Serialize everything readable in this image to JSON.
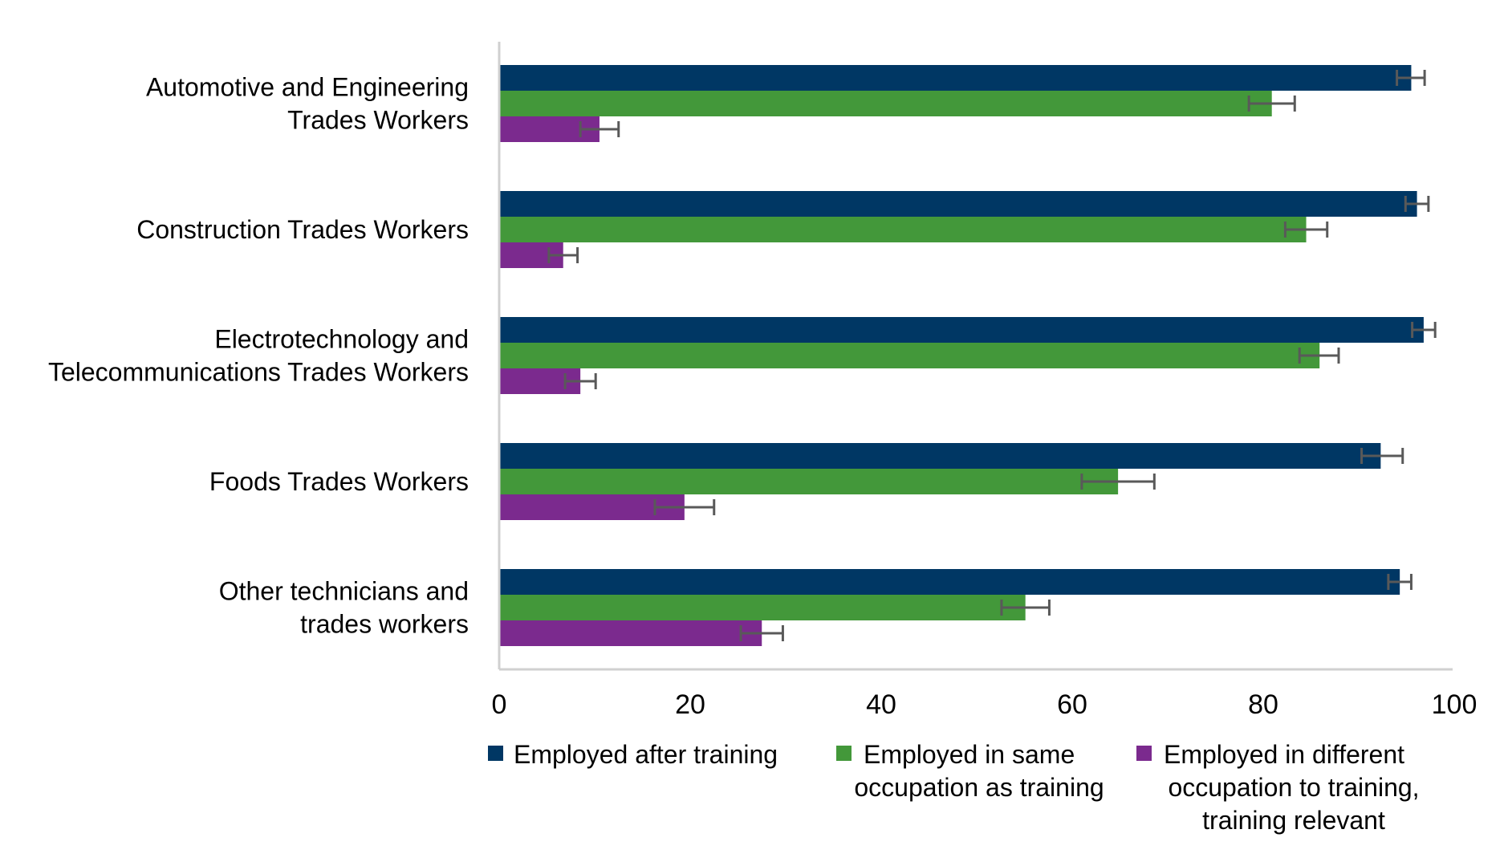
{
  "chart_data": {
    "type": "bar",
    "orientation": "horizontal",
    "title": "",
    "xlabel": "",
    "ylabel": "",
    "xlim": [
      0,
      100
    ],
    "x_ticks": [
      0,
      20,
      40,
      60,
      80,
      100
    ],
    "grid": false,
    "legend_position": "bottom",
    "error_bars": true,
    "categories": [
      [
        "Automotive and Engineering",
        "Trades Workers"
      ],
      [
        "Construction Trades Workers"
      ],
      [
        "Electrotechnology and",
        "Telecommunications Trades Workers"
      ],
      [
        "Foods Trades Workers"
      ],
      [
        "Other technicians and",
        "trades workers"
      ]
    ],
    "series": [
      {
        "name": "Employed after training",
        "legend_lines": [
          "Employed after training"
        ],
        "color": "#003764",
        "values": [
          95.5,
          96.1,
          96.8,
          92.3,
          94.3
        ],
        "err_low": [
          94.0,
          94.9,
          95.6,
          90.3,
          93.1
        ],
        "err_high": [
          96.9,
          97.3,
          98.0,
          94.6,
          95.5
        ]
      },
      {
        "name": "Employed in same occupation as training",
        "legend_lines": [
          "Employed in same",
          "occupation as training"
        ],
        "color": "#43983A",
        "values": [
          80.9,
          84.5,
          85.9,
          64.8,
          55.1
        ],
        "err_low": [
          78.5,
          82.3,
          83.8,
          61.0,
          52.6
        ],
        "err_high": [
          83.3,
          86.7,
          87.9,
          68.6,
          57.6
        ]
      },
      {
        "name": "Employed in different occupation to training, training relevant",
        "legend_lines": [
          "Employed in different",
          "occupation to training,",
          "training relevant"
        ],
        "color": "#7B2A8E",
        "values": [
          10.5,
          6.7,
          8.5,
          19.4,
          27.5
        ],
        "err_low": [
          8.5,
          5.2,
          6.9,
          16.3,
          25.3
        ],
        "err_high": [
          12.5,
          8.2,
          10.1,
          22.5,
          29.7
        ]
      }
    ]
  }
}
